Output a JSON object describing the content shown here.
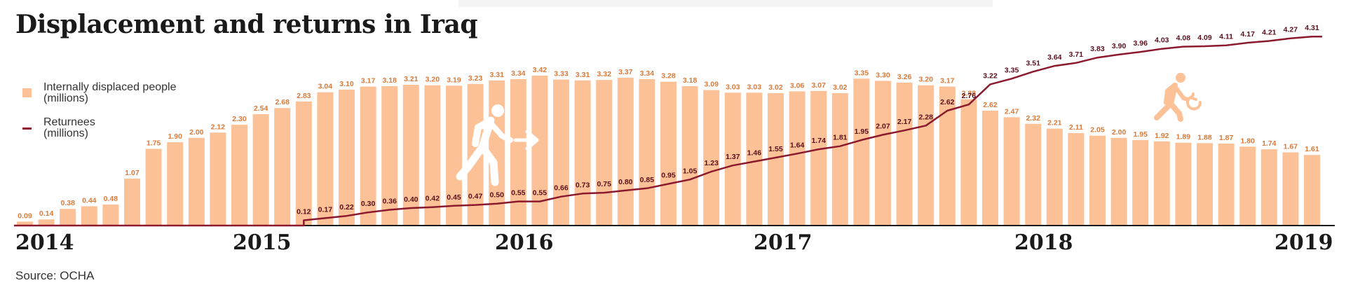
{
  "title": "Displacement and returns in Iraq",
  "source": "Source: OCHA",
  "legend": {
    "idp_line1": "Internally displaced people",
    "idp_line2": "(millions)",
    "ret_line1": "Returnees",
    "ret_line2": "(millions)"
  },
  "icons": [
    "person-leaving-icon",
    "person-returning-icon"
  ],
  "colors": {
    "bars": "#fcc196",
    "bar_labels": "#d97a3a",
    "line": "#8b1a2e",
    "line_labels": "#5a0f1c",
    "returning_icon": "#fcc196"
  },
  "chart_data": {
    "type": "bar",
    "grid": false,
    "x_ticks": [
      "2014",
      "2015",
      "2016",
      "2017",
      "2018",
      "2019"
    ],
    "series": [
      {
        "name": "Internally displaced people (millions)",
        "values": [
          0.09,
          0.14,
          0.38,
          0.44,
          0.48,
          1.07,
          1.75,
          1.9,
          2.0,
          2.12,
          2.3,
          2.54,
          2.68,
          2.83,
          3.04,
          3.1,
          3.17,
          3.18,
          3.21,
          3.2,
          3.19,
          3.23,
          3.31,
          3.34,
          3.42,
          3.33,
          3.31,
          3.32,
          3.37,
          3.34,
          3.28,
          3.18,
          3.09,
          3.03,
          3.03,
          3.02,
          3.06,
          3.07,
          3.02,
          3.35,
          3.3,
          3.26,
          3.2,
          3.17,
          2.88,
          2.62,
          2.47,
          2.32,
          2.21,
          2.11,
          2.05,
          2.0,
          1.95,
          1.92,
          1.89,
          1.88,
          1.87,
          1.8,
          1.74,
          1.67,
          1.61
        ]
      },
      {
        "name": "Returnees (millions)",
        "values": [
          null,
          null,
          null,
          null,
          null,
          null,
          null,
          null,
          null,
          null,
          null,
          null,
          null,
          0.12,
          0.17,
          0.22,
          0.3,
          0.36,
          0.4,
          0.42,
          0.45,
          0.47,
          0.5,
          0.55,
          0.55,
          0.66,
          0.73,
          0.75,
          0.8,
          0.85,
          0.95,
          1.05,
          1.23,
          1.37,
          1.46,
          1.55,
          1.64,
          1.74,
          1.81,
          1.95,
          2.07,
          2.17,
          2.28,
          2.62,
          2.76,
          3.22,
          3.35,
          3.51,
          3.64,
          3.71,
          3.83,
          3.9,
          3.96,
          4.03,
          4.08,
          4.09,
          4.11,
          4.17,
          4.21,
          4.27,
          4.31
        ]
      }
    ]
  }
}
